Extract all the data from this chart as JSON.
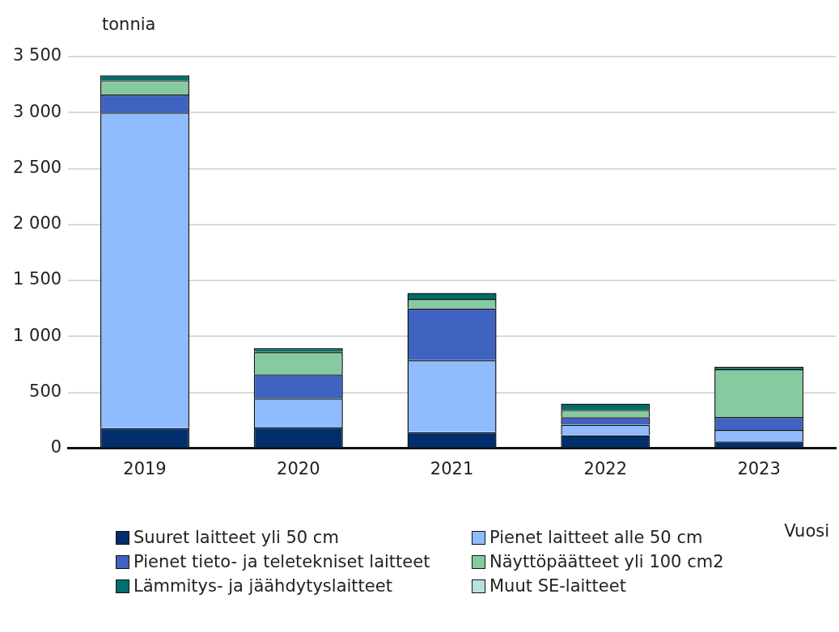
{
  "chart_data": {
    "type": "bar",
    "stacked": true,
    "ylabel": "tonnia",
    "xlabel": "Vuosi",
    "categories": [
      "2019",
      "2020",
      "2021",
      "2022",
      "2023"
    ],
    "ylim": [
      0,
      3500
    ],
    "yticks": [
      {
        "value": 0,
        "label": "0"
      },
      {
        "value": 500,
        "label": "500"
      },
      {
        "value": 1000,
        "label": "1 000"
      },
      {
        "value": 1500,
        "label": "1 500"
      },
      {
        "value": 2000,
        "label": "2 000"
      },
      {
        "value": 2500,
        "label": "2 500"
      },
      {
        "value": 3000,
        "label": "3 000"
      },
      {
        "value": 3500,
        "label": "3 500"
      }
    ],
    "grid": "y",
    "legend": "bottom",
    "series": [
      {
        "name": "Suuret laitteet yli 50 cm",
        "color": "#002f6c",
        "values": [
          180,
          187,
          144,
          117,
          61
        ]
      },
      {
        "name": "Pienet laitteet alle 50 cm",
        "color": "#8fbcff",
        "values": [
          2820,
          258,
          643,
          95,
          104
        ]
      },
      {
        "name": "Pienet tieto- ja teletekniset laitteet",
        "color": "#3f63c0",
        "values": [
          160,
          216,
          465,
          66,
          115
        ]
      },
      {
        "name": "Näyttöpäätteet yli 100 cm2",
        "color": "#86cba0",
        "values": [
          128,
          201,
          82,
          65,
          426
        ]
      },
      {
        "name": "Lämmitys- ja jäähdytyslaitteet",
        "color": "#006e6a",
        "values": [
          45,
          34,
          54,
          56,
          23
        ]
      },
      {
        "name": "Muut SE-laitteet",
        "color": "#b3e3dc",
        "values": [
          0,
          0,
          0,
          0,
          0
        ]
      }
    ]
  }
}
